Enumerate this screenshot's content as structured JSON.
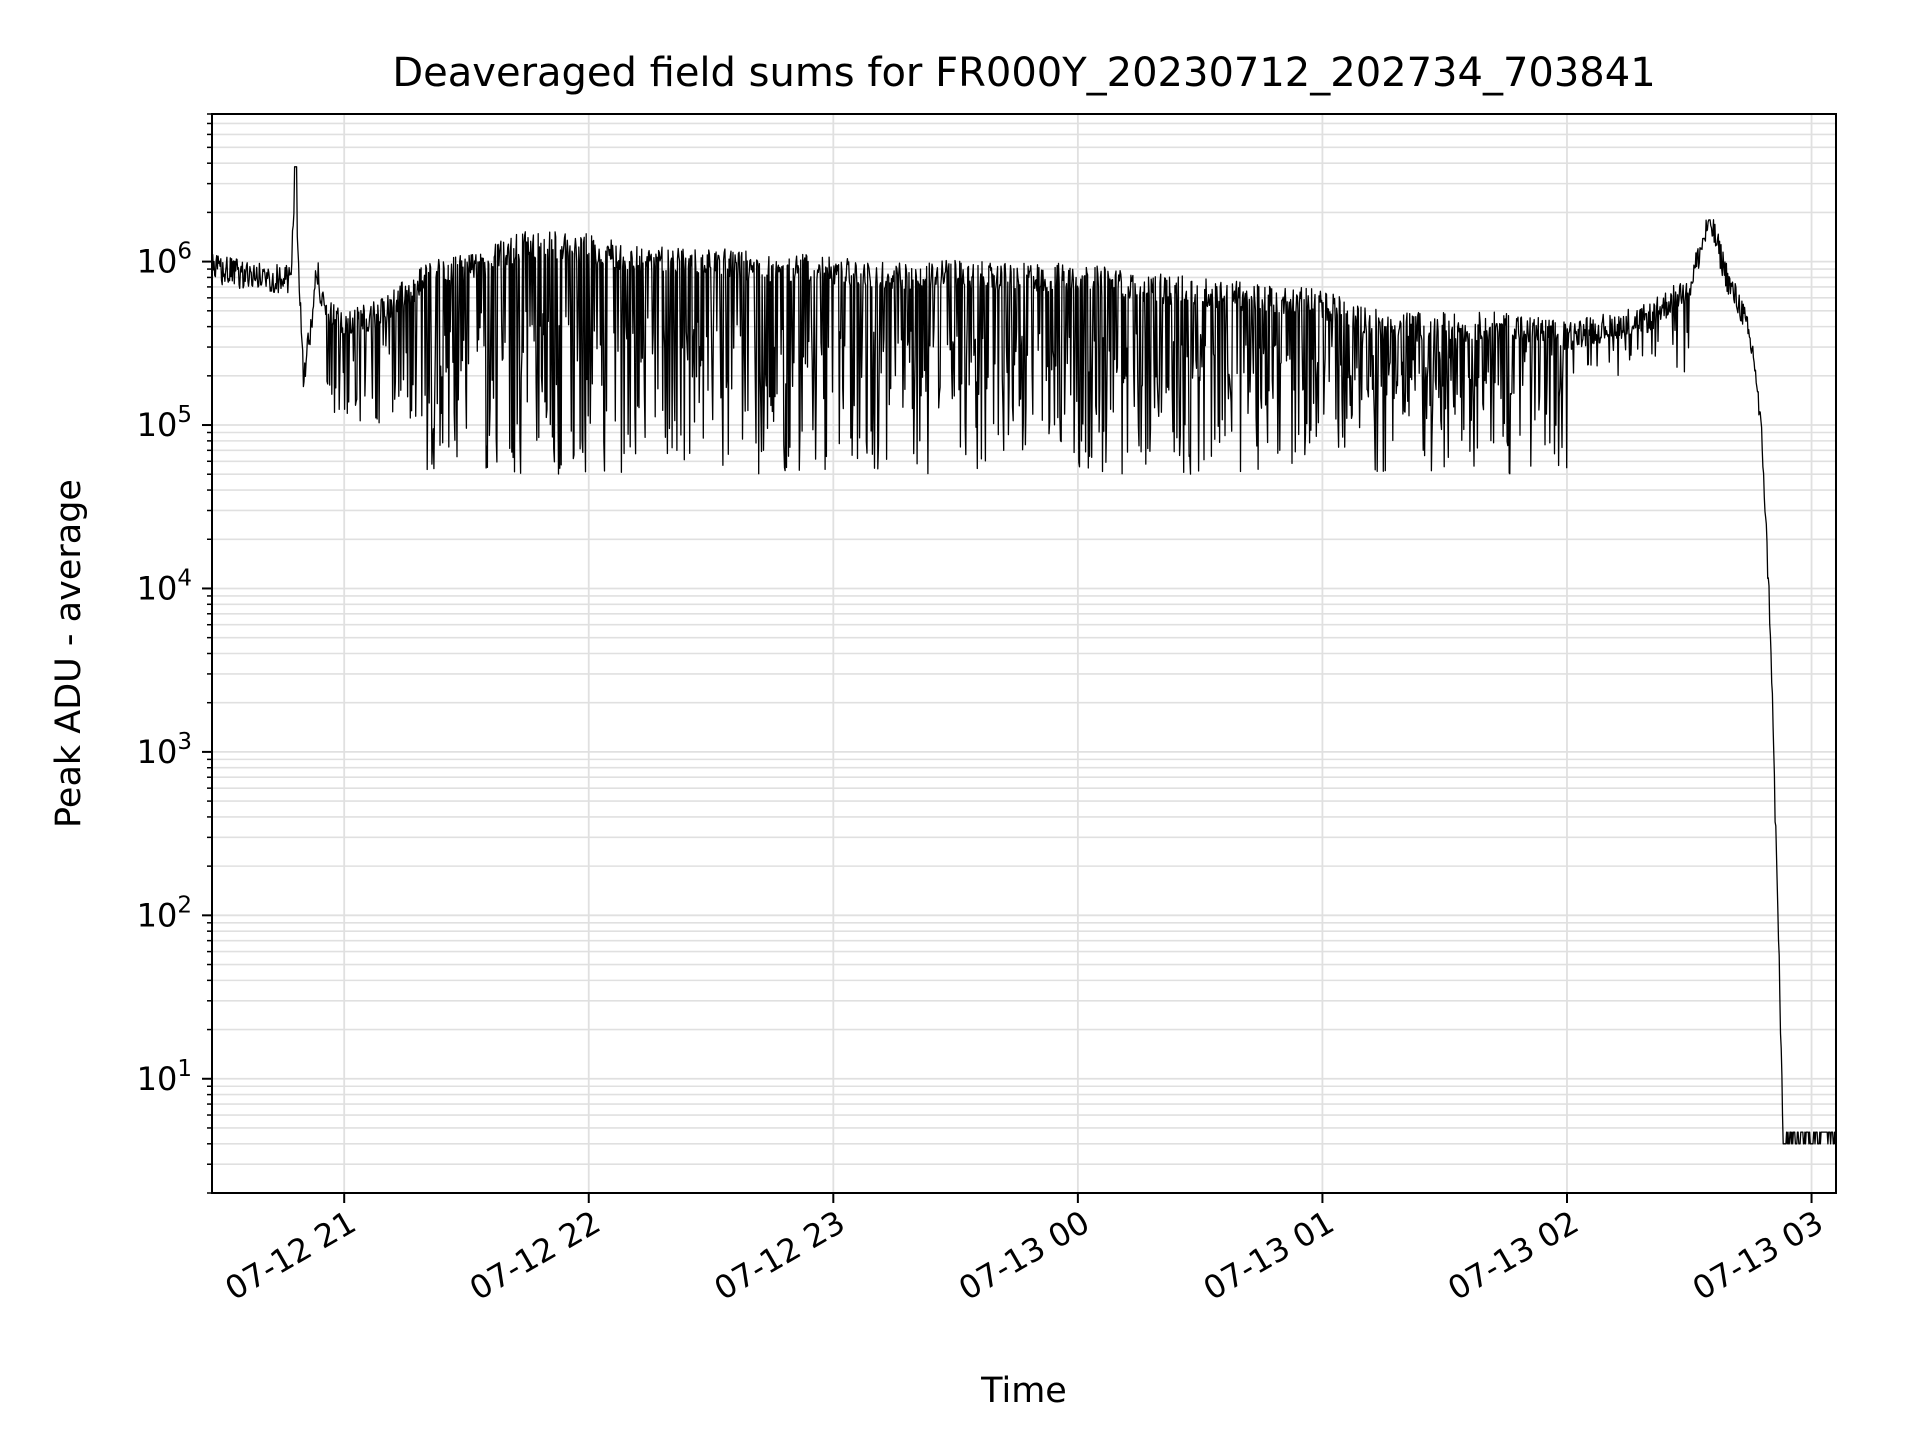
{
  "chart_data": {
    "type": "line",
    "title": "Deaveraged field sums for FR000Y_20230712_202734_703841",
    "xlabel": "Time",
    "ylabel": "Peak ADU - average",
    "yscale": "log",
    "ylim": [
      2,
      8000000
    ],
    "xlim": [
      "2023-07-12 20:27:34",
      "2023-07-13 03:06:00"
    ],
    "grid": "on (major and minor)",
    "line_color": "#000000",
    "grid_color": "#e0e0e0",
    "x_ticks": [
      {
        "t": "2023-07-12 21:00:00",
        "label": "07-12 21"
      },
      {
        "t": "2023-07-12 22:00:00",
        "label": "07-12 22"
      },
      {
        "t": "2023-07-12 23:00:00",
        "label": "07-12 23"
      },
      {
        "t": "2023-07-13 00:00:00",
        "label": "07-13 00"
      },
      {
        "t": "2023-07-13 01:00:00",
        "label": "07-13 01"
      },
      {
        "t": "2023-07-13 02:00:00",
        "label": "07-13 02"
      },
      {
        "t": "2023-07-13 03:00:00",
        "label": "07-13 03"
      }
    ],
    "y_ticks": [
      {
        "value": 10,
        "exp": "1"
      },
      {
        "value": 100,
        "exp": "2"
      },
      {
        "value": 1000,
        "exp": "3"
      },
      {
        "value": 10000,
        "exp": "4"
      },
      {
        "value": 100000,
        "exp": "5"
      },
      {
        "value": 1000000,
        "exp": "6"
      }
    ],
    "y_tick_base": "10",
    "series": [
      {
        "x": [
          "2023-07-12 20:27:34",
          "2023-07-12 20:33:00",
          "2023-07-12 20:40:00",
          "2023-07-12 20:47:00",
          "2023-07-12 20:48:00",
          "2023-07-12 20:49:00",
          "2023-07-12 20:50:00",
          "2023-07-12 20:52:00",
          "2023-07-12 20:53:00",
          "2023-07-12 20:55:00",
          "2023-07-12 21:00:00",
          "2023-07-12 21:10:00",
          "2023-07-12 21:20:00",
          "2023-07-12 21:35:00",
          "2023-07-12 21:45:00",
          "2023-07-12 22:00:00",
          "2023-07-12 22:15:00",
          "2023-07-12 22:30:00",
          "2023-07-12 22:45:00",
          "2023-07-12 23:00:00",
          "2023-07-12 23:15:00",
          "2023-07-12 23:25:00",
          "2023-07-12 23:40:00",
          "2023-07-13 00:00:00",
          "2023-07-13 00:15:00",
          "2023-07-13 00:30:00",
          "2023-07-13 00:45:00",
          "2023-07-13 01:00:00",
          "2023-07-13 01:15:00",
          "2023-07-13 01:30:00",
          "2023-07-13 01:45:00",
          "2023-07-13 02:00:00",
          "2023-07-13 02:10:00",
          "2023-07-13 02:20:00",
          "2023-07-13 02:30:00",
          "2023-07-13 02:35:00",
          "2023-07-13 02:40:00",
          "2023-07-13 02:43:00",
          "2023-07-13 02:46:00",
          "2023-07-13 02:48:00",
          "2023-07-13 02:50:00",
          "2023-07-13 02:51:00",
          "2023-07-13 02:52:00",
          "2023-07-13 02:53:00",
          "2023-07-13 02:54:00",
          "2023-07-13 02:55:00",
          "2023-07-13 03:06:00"
        ],
        "y": [
          900000,
          850000,
          800000,
          780000,
          3800000,
          700000,
          200000,
          400000,
          1000000,
          500000,
          400000,
          500000,
          800000,
          1000000,
          1300000,
          1200000,
          1000000,
          1000000,
          900000,
          900000,
          800000,
          850000,
          800000,
          800000,
          700000,
          650000,
          600000,
          550000,
          400000,
          400000,
          400000,
          350000,
          400000,
          450000,
          700000,
          1800000,
          700000,
          500000,
          250000,
          70000,
          5000,
          500,
          60,
          4,
          4,
          4,
          4
        ],
        "dips_to": [
          50000,
          200000
        ],
        "dip_region": [
          "2023-07-12 21:20:00",
          "2023-07-13 02:00:00"
        ]
      }
    ]
  }
}
